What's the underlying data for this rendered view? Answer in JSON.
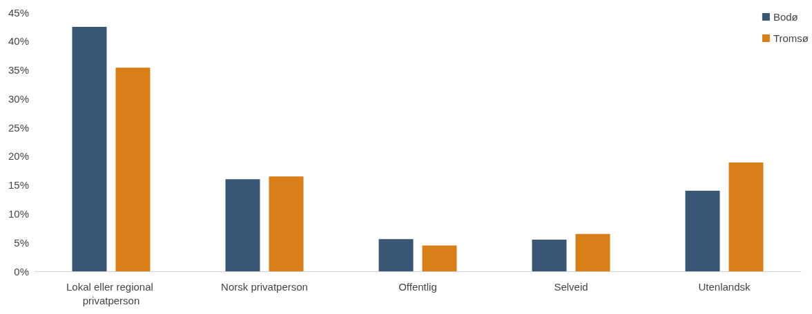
{
  "chart_data": {
    "type": "bar",
    "categories": [
      "Lokal eller regional privatperson",
      "Norsk privatperson",
      "Offentlig",
      "Selveid",
      "Utenlandsk"
    ],
    "series": [
      {
        "name": "Bodø",
        "color": "#3a5675",
        "values": [
          42.5,
          16.0,
          5.6,
          5.5,
          14.0
        ]
      },
      {
        "name": "Tromsø",
        "color": "#d97f1a",
        "values": [
          35.4,
          16.5,
          4.5,
          6.5,
          18.9
        ]
      }
    ],
    "ylim": [
      0,
      45
    ],
    "yticks": [
      {
        "value": 0,
        "label": "0%"
      },
      {
        "value": 5,
        "label": "5%"
      },
      {
        "value": 10,
        "label": "10%"
      },
      {
        "value": 15,
        "label": "15%"
      },
      {
        "value": 20,
        "label": "20%"
      },
      {
        "value": 25,
        "label": "25%"
      },
      {
        "value": 30,
        "label": "30%"
      },
      {
        "value": 35,
        "label": "35%"
      },
      {
        "value": 40,
        "label": "40%"
      },
      {
        "value": 45,
        "label": "45%"
      }
    ],
    "grid": false,
    "legend": "top right"
  }
}
